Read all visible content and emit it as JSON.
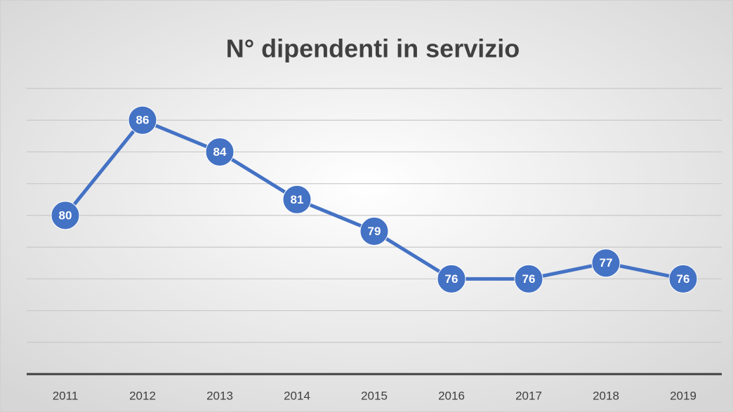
{
  "chart_data": {
    "type": "line",
    "title": "N° dipendenti in servizio",
    "categories": [
      "2011",
      "2012",
      "2013",
      "2014",
      "2015",
      "2016",
      "2017",
      "2018",
      "2019"
    ],
    "values": [
      80,
      86,
      84,
      81,
      79,
      76,
      76,
      77,
      76
    ],
    "color": "#4472c4",
    "ylim": [
      70,
      88
    ],
    "yticks": [
      70,
      72,
      74,
      76,
      78,
      80,
      82,
      84,
      86,
      88
    ],
    "grid": true
  }
}
